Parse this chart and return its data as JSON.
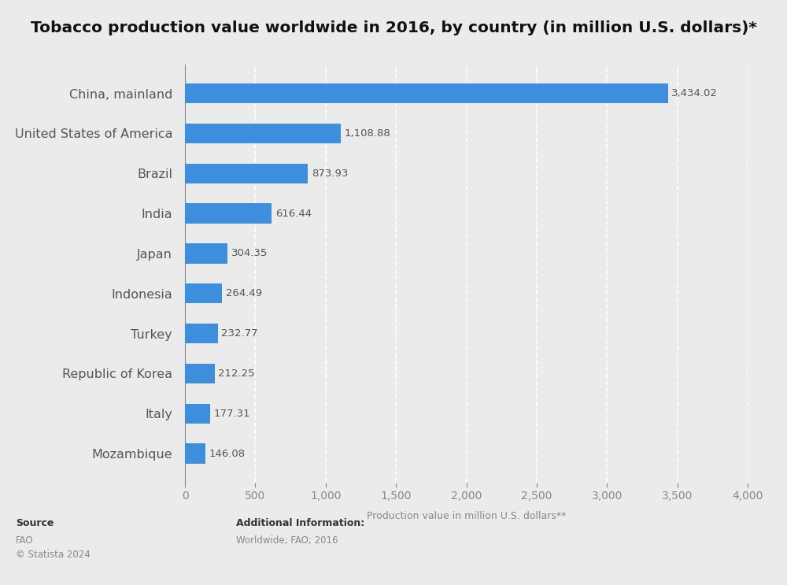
{
  "title": "Tobacco production value worldwide in 2016, by country (in million U.S. dollars)*",
  "countries": [
    "China, mainland",
    "United States of America",
    "Brazil",
    "India",
    "Japan",
    "Indonesia",
    "Turkey",
    "Republic of Korea",
    "Italy",
    "Mozambique"
  ],
  "values": [
    3434.02,
    1108.88,
    873.93,
    616.44,
    304.35,
    264.49,
    232.77,
    212.25,
    177.31,
    146.08
  ],
  "bar_color": "#3d8fdd",
  "xlabel": "Production value in million U.S. dollars**",
  "xlim": [
    0,
    4000
  ],
  "xticks": [
    0,
    500,
    1000,
    1500,
    2000,
    2500,
    3000,
    3500,
    4000
  ],
  "background_color": "#ebebeb",
  "plot_bg_color": "#ebebeb",
  "title_fontsize": 14.5,
  "label_fontsize": 11.5,
  "tick_fontsize": 10,
  "source_label": "Source",
  "source_body": "FAO\n© Statista 2024",
  "additional_label": "Additional Information:",
  "additional_body": "Worldwide; FAO; 2016"
}
